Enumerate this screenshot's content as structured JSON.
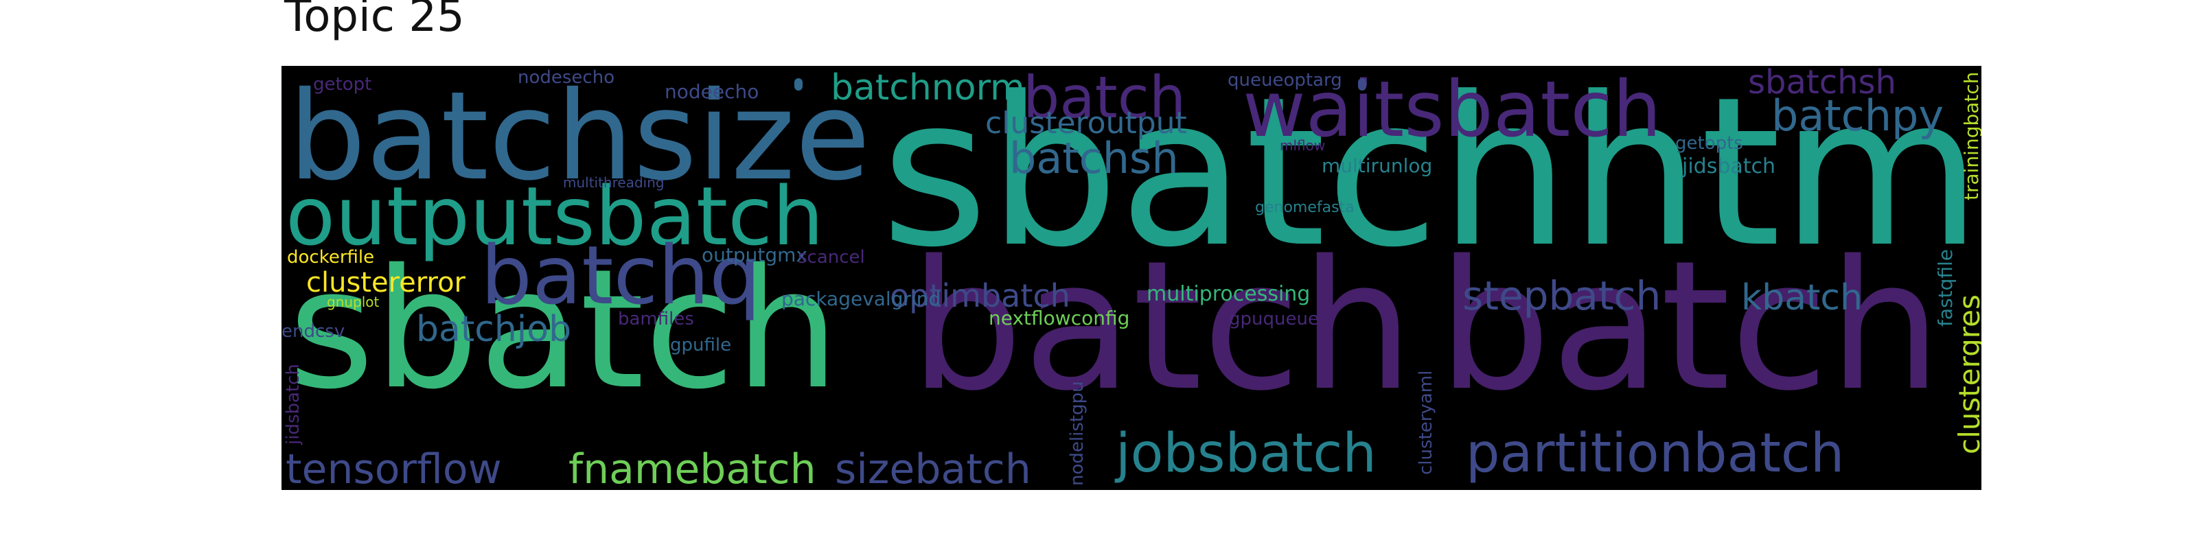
{
  "title": "Topic 25",
  "palette": {
    "dark_purple": "#46206a",
    "purple": "#482878",
    "indigo": "#3e4a89",
    "blue": "#31688e",
    "teal": "#26828e",
    "green_teal": "#1f9e89",
    "green": "#35b779",
    "lime": "#6ece58",
    "yellow_green": "#b5de2b",
    "yellow": "#fde725",
    "background": "#000000"
  },
  "words": [
    "sbatchhtml",
    "batch",
    "batch",
    "sbatch",
    "batchsize",
    "outputsbatch",
    "waitsbatch",
    "batchq",
    "partitionbatch",
    "jobsbatch",
    "batch",
    "tensorflow",
    "fnamebatch",
    "sizebatch",
    "batchsh",
    "batchpy",
    "stepbatch",
    "batchnorm",
    "batchjob",
    "kbatch",
    "optimbatch",
    "sbatchsh",
    "clusteroutput",
    "clustererror",
    "jidsbatch",
    "multiprocessing",
    "nextflowconfig",
    "multirunlog",
    "getopts",
    "packagevalgrind",
    "gpufile",
    "nodeecho",
    "nodesecho",
    "getopt",
    "queueoptarg",
    "dockerfile",
    "outputgmx",
    "scancel",
    "endcsv",
    "bamfiles",
    "gpuqueue",
    "genomefasta",
    "mlflow",
    "multithreading",
    "gnuplot",
    "fastqfile",
    "trainingbatch",
    "clustergres",
    "jidsbatch",
    "nodelistgpu",
    "clusteryaml"
  ]
}
